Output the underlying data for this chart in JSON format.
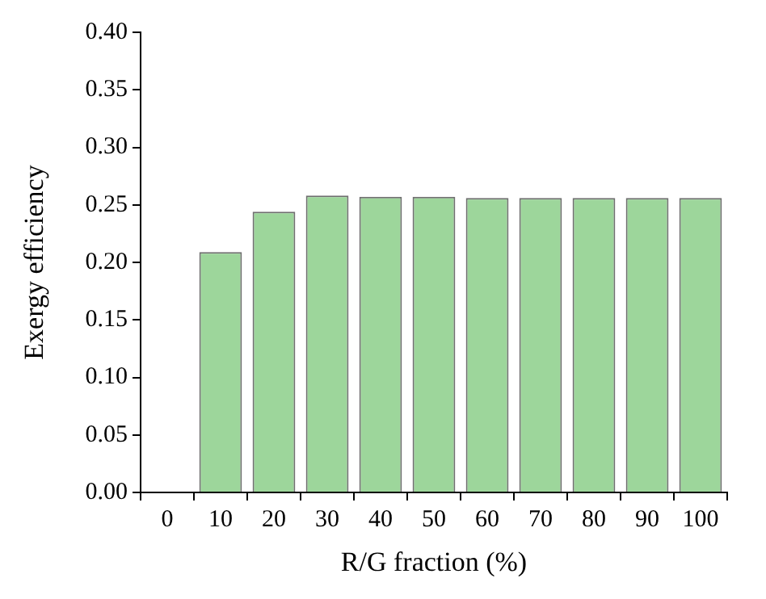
{
  "chart_data": {
    "type": "bar",
    "xlabel": "R/G fraction (%)",
    "ylabel": "Exergy efficiency",
    "categories": [
      "0",
      "10",
      "20",
      "30",
      "40",
      "50",
      "60",
      "70",
      "80",
      "90",
      "100"
    ],
    "values": [
      null,
      0.209,
      0.244,
      0.258,
      0.257,
      0.257,
      0.256,
      0.256,
      0.256,
      0.256,
      0.256
    ],
    "color": "#9dd69b",
    "ylim": [
      0,
      0.4
    ],
    "yticks": [
      {
        "value": 0,
        "label": "0.00"
      },
      {
        "value": 0.05,
        "label": "0.05"
      },
      {
        "value": 0.1,
        "label": "0.10"
      },
      {
        "value": 0.15,
        "label": "0.15"
      },
      {
        "value": 0.2,
        "label": "0.20"
      },
      {
        "value": 0.25,
        "label": "0.25"
      },
      {
        "value": 0.3,
        "label": "0.30"
      },
      {
        "value": 0.35,
        "label": "0.35"
      },
      {
        "value": 0.4,
        "label": "0.40"
      }
    ],
    "grid": false,
    "legend": false
  }
}
